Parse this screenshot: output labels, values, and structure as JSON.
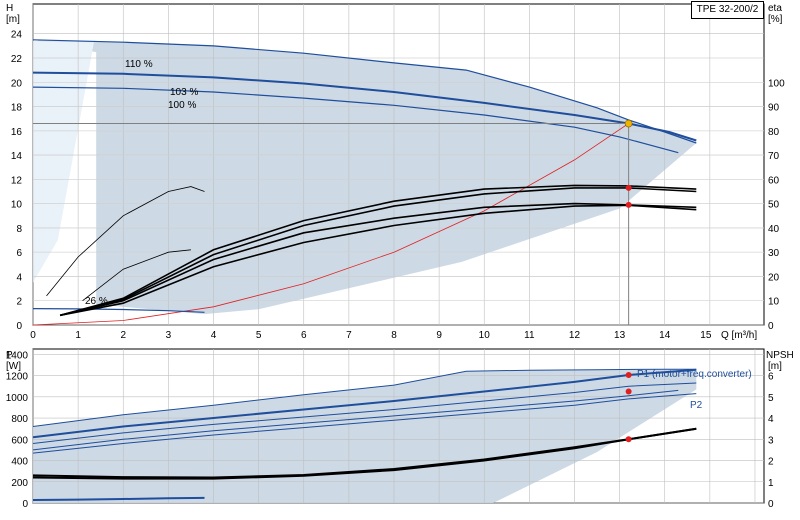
{
  "model": "TPE 32-200/2",
  "chart_data": [
    {
      "type": "line",
      "name": "head-efficiency",
      "axes": {
        "x": {
          "unit_label": "Q [m³/h]",
          "range": [
            0,
            15
          ],
          "ticks": [
            "0",
            "1",
            "2",
            "3",
            "4",
            "5",
            "6",
            "7",
            "8",
            "9",
            "10",
            "11",
            "12",
            "13",
            "14",
            "15"
          ]
        },
        "y_left": {
          "label": "H",
          "unit": "[m]",
          "range": [
            0,
            26
          ],
          "ticks": [
            "0",
            "2",
            "4",
            "6",
            "8",
            "10",
            "12",
            "14",
            "16",
            "18",
            "20",
            "22",
            "24"
          ]
        },
        "y_right": {
          "label": "eta",
          "unit": "[%]",
          "range": [
            0,
            130
          ],
          "ticks": [
            "0",
            "10",
            "20",
            "30",
            "40",
            "50",
            "60",
            "70",
            "80",
            "90",
            "100"
          ]
        }
      },
      "grid": true,
      "speed_labels": {
        "max": "110 %",
        "mid": "103 %",
        "nom": "100 %",
        "min": "26 %"
      },
      "head_curves": [
        {
          "speed": "110 %",
          "x": [
            0,
            2,
            4,
            6,
            8,
            9.6,
            11,
            12.5,
            13.2,
            14,
            14.7
          ],
          "y": [
            23.5,
            23.3,
            23.0,
            22.4,
            21.6,
            21.0,
            19.6,
            17.9,
            16.9,
            15.9,
            15.0
          ]
        },
        {
          "speed": "103 %",
          "x": [
            0,
            2,
            4,
            6,
            8,
            10,
            12,
            13.2,
            14.1,
            14.7
          ],
          "y": [
            20.8,
            20.7,
            20.4,
            19.9,
            19.2,
            18.3,
            17.3,
            16.6,
            15.9,
            15.2
          ]
        },
        {
          "speed": "100 %",
          "x": [
            0,
            2,
            4,
            6,
            8,
            10,
            12,
            13,
            14.3
          ],
          "y": [
            19.6,
            19.5,
            19.2,
            18.7,
            18.1,
            17.3,
            16.3,
            15.5,
            14.2
          ]
        },
        {
          "speed": "26 %",
          "x": [
            0,
            1,
            2,
            3,
            3.8
          ],
          "y": [
            1.35,
            1.33,
            1.28,
            1.18,
            1.05
          ]
        }
      ],
      "eta_curves": [
        {
          "x": [
            0.6,
            2,
            4,
            6,
            8,
            10,
            12,
            13.2,
            14.7
          ],
          "y": [
            4,
            10,
            27,
            38,
            44,
            48.5,
            50,
            49.5,
            48.5
          ]
        },
        {
          "x": [
            0.6,
            2,
            4,
            6,
            8,
            10,
            12,
            13.2,
            14.7
          ],
          "y": [
            4,
            9,
            24,
            34,
            41,
            46,
            49,
            49.3,
            47.5
          ]
        },
        {
          "x": [
            0.6,
            2,
            4,
            6,
            8,
            10,
            12,
            13.2,
            14.7
          ],
          "y": [
            4,
            10.5,
            29,
            41,
            49,
            54,
            56.5,
            56.5,
            55
          ]
        },
        {
          "x": [
            0.6,
            2,
            4,
            6,
            8,
            10,
            12,
            13.2,
            14.7
          ],
          "y": [
            4,
            11,
            31,
            43,
            51,
            56,
            57.5,
            57.3,
            56
          ]
        },
        {
          "x": [
            0.3,
            1,
            2,
            3,
            3.5,
            3.8
          ],
          "y": [
            12,
            28,
            45,
            55,
            57,
            55
          ]
        },
        {
          "x": [
            1.1,
            2,
            3,
            3.5
          ],
          "y": [
            10,
            23,
            30,
            31
          ]
        }
      ],
      "system_curve": {
        "x": [
          0,
          2,
          4,
          6,
          8,
          10,
          12,
          13.2
        ],
        "y": [
          0,
          0.37,
          1.5,
          3.4,
          6.0,
          9.4,
          13.6,
          16.6
        ]
      },
      "duty_line": {
        "q": 13.2,
        "h": 16.6
      },
      "duty_point": {
        "q": 13.2,
        "h": 16.6,
        "color": "#f0b400"
      },
      "eta_points": [
        {
          "q": 13.2,
          "eta": 49.5
        },
        {
          "q": 13.2,
          "eta": 56.5
        }
      ],
      "area_color": "#cdd9e5",
      "curve_color": "#1f4e9c",
      "system_color": "#e02020"
    },
    {
      "type": "line",
      "name": "power-npsh",
      "axes": {
        "y_left": {
          "label": "P",
          "unit": "[W]",
          "range": [
            0,
            1450
          ],
          "ticks": [
            "0",
            "200",
            "400",
            "600",
            "800",
            "1000",
            "1200",
            "1400"
          ]
        },
        "y_right": {
          "label": "NPSH",
          "unit": "[m]",
          "range": [
            0,
            7.25
          ],
          "ticks": [
            "0",
            "1",
            "2",
            "3",
            "4",
            "5",
            "6"
          ]
        }
      },
      "grid": true,
      "series_labels": {
        "p1": "P1 (motor+freq.converter)",
        "p2": "P2"
      },
      "power_curves": [
        {
          "x": [
            0,
            2,
            4,
            6,
            8,
            9.6,
            11,
            12.5,
            14,
            14.7
          ],
          "y": [
            720,
            830,
            920,
            1020,
            1110,
            1240,
            1250,
            1255,
            1260,
            1260
          ]
        },
        {
          "x": [
            0,
            2,
            4,
            6,
            8,
            10,
            12,
            13.2,
            14.7
          ],
          "y": [
            620,
            720,
            800,
            880,
            960,
            1050,
            1140,
            1205,
            1255
          ]
        },
        {
          "x": [
            0,
            2,
            4,
            6,
            8,
            10,
            12,
            13.2,
            14.7
          ],
          "y": [
            560,
            660,
            740,
            810,
            880,
            960,
            1040,
            1100,
            1130
          ]
        },
        {
          "x": [
            0,
            2,
            4,
            6,
            8,
            10,
            12,
            13.2,
            14.3
          ],
          "y": [
            500,
            600,
            680,
            750,
            820,
            890,
            960,
            1010,
            1060
          ]
        },
        {
          "x": [
            0,
            2,
            4,
            6,
            8,
            10,
            12,
            13.2,
            14.7
          ],
          "y": [
            470,
            560,
            640,
            710,
            780,
            850,
            920,
            980,
            1030
          ]
        },
        {
          "x": [
            0,
            1,
            2,
            3,
            3.8
          ],
          "y": [
            28,
            32,
            38,
            44,
            48
          ]
        }
      ],
      "npsh_curves": [
        {
          "x": [
            0,
            2,
            4,
            6,
            8,
            10,
            12,
            13.2,
            14.7
          ],
          "y": [
            1.3,
            1.22,
            1.2,
            1.32,
            1.6,
            2.05,
            2.62,
            3.0,
            3.5
          ]
        },
        {
          "x": [
            0,
            2,
            4,
            6,
            8,
            10,
            12,
            13.2,
            14.7
          ],
          "y": [
            1.2,
            1.15,
            1.15,
            1.28,
            1.55,
            2.0,
            2.58,
            3.0,
            3.5
          ]
        }
      ],
      "points": [
        {
          "q": 13.2,
          "p": 1205
        },
        {
          "q": 13.2,
          "p": 1050
        },
        {
          "q": 13.2,
          "npsh": 3.0
        }
      ],
      "area_color": "#cdd9e5",
      "curve_color": "#1f4e9c"
    }
  ]
}
